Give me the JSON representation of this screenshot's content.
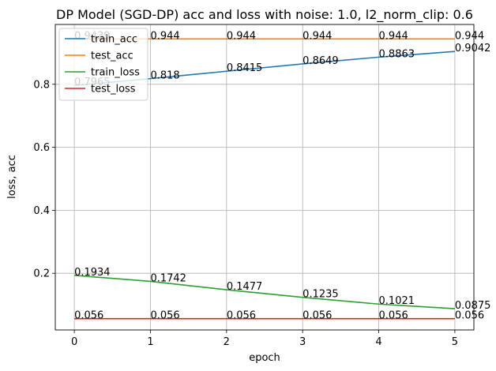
{
  "chart_data": {
    "type": "line",
    "title": "DP Model (SGD-DP) acc and loss with noise: 1.0, l2_norm_clip: 0.6",
    "xlabel": "epoch",
    "ylabel": "loss, acc",
    "x": [
      0,
      1,
      2,
      3,
      4,
      5
    ],
    "xlim": [
      -0.25,
      5.25
    ],
    "ylim": [
      0.02,
      0.99
    ],
    "x_ticks": [
      "0",
      "1",
      "2",
      "3",
      "4",
      "5"
    ],
    "y_ticks": [
      {
        "value": 0.2,
        "label": "0.2"
      },
      {
        "value": 0.4,
        "label": "0.4"
      },
      {
        "value": 0.6,
        "label": "0.6"
      },
      {
        "value": 0.8,
        "label": "0.8"
      }
    ],
    "grid": true,
    "legend_position": "upper-left",
    "series": [
      {
        "name": "train_acc",
        "color": "#1f77b4",
        "values": [
          0.7965,
          0.818,
          0.8415,
          0.8649,
          0.8863,
          0.9042
        ],
        "labels": [
          "0.7965",
          "0.818",
          "0.8415",
          "0.8649",
          "0.8863",
          "0.9042"
        ]
      },
      {
        "name": "test_acc",
        "color": "#ff7f0e",
        "values": [
          0.9439,
          0.944,
          0.944,
          0.944,
          0.944,
          0.944
        ],
        "labels": [
          "0.9439",
          "0.944",
          "0.944",
          "0.944",
          "0.944",
          "0.944"
        ]
      },
      {
        "name": "train_loss",
        "color": "#2ca02c",
        "values": [
          0.1934,
          0.1742,
          0.1477,
          0.1235,
          0.1021,
          0.0875
        ],
        "labels": [
          "0.1934",
          "0.1742",
          "0.1477",
          "0.1235",
          "0.1021",
          "0.0875"
        ]
      },
      {
        "name": "test_loss",
        "color": "#d62728",
        "values": [
          0.056,
          0.056,
          0.056,
          0.056,
          0.056,
          0.056
        ],
        "labels": [
          "0.056",
          "0.056",
          "0.056",
          "0.056",
          "0.056",
          "0.056"
        ]
      }
    ]
  }
}
